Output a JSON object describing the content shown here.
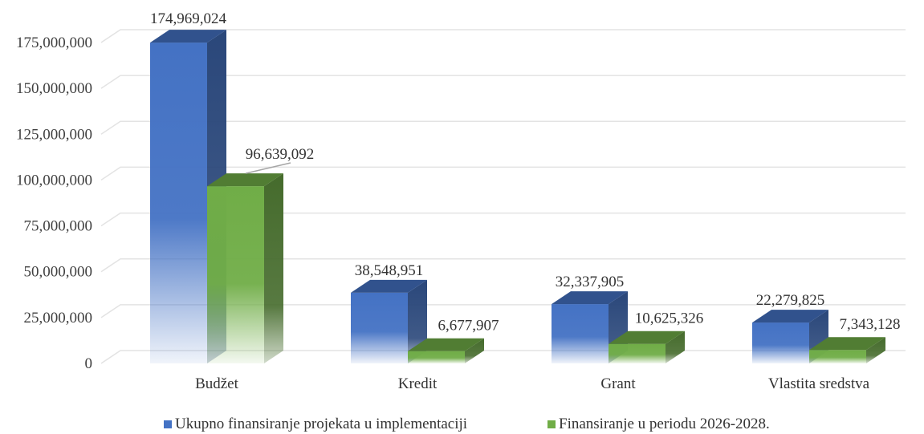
{
  "chart_data": {
    "type": "bar",
    "categories": [
      "Budžet",
      "Kredit",
      "Grant",
      "Vlastita sredstva"
    ],
    "series": [
      {
        "name": "Ukupno finansiranje projekata u implementaciji",
        "values": [
          174969024,
          38548951,
          32337905,
          22279825
        ],
        "labels": [
          "174,969,024",
          "38,548,951",
          "32,337,905",
          "22,279,825"
        ],
        "color": "#4472c4"
      },
      {
        "name": "Finansiranje u periodu 2026-2028.",
        "values": [
          96639092,
          6677907,
          10625326,
          7343128
        ],
        "labels": [
          "96,639,092",
          "6,677,907",
          "10,625,326",
          "7,343,128"
        ],
        "color": "#70ad47"
      }
    ],
    "ylim": [
      0,
      175000000
    ],
    "yticks": [
      0,
      25000000,
      50000000,
      75000000,
      100000000,
      125000000,
      150000000,
      175000000
    ],
    "ytick_labels": [
      "0",
      "25,000,000",
      "50,000,000",
      "75,000,000",
      "100,000,000",
      "125,000,000",
      "150,000,000",
      "175,000,000"
    ],
    "grid": true,
    "three_d": true,
    "legend_position": "bottom"
  }
}
